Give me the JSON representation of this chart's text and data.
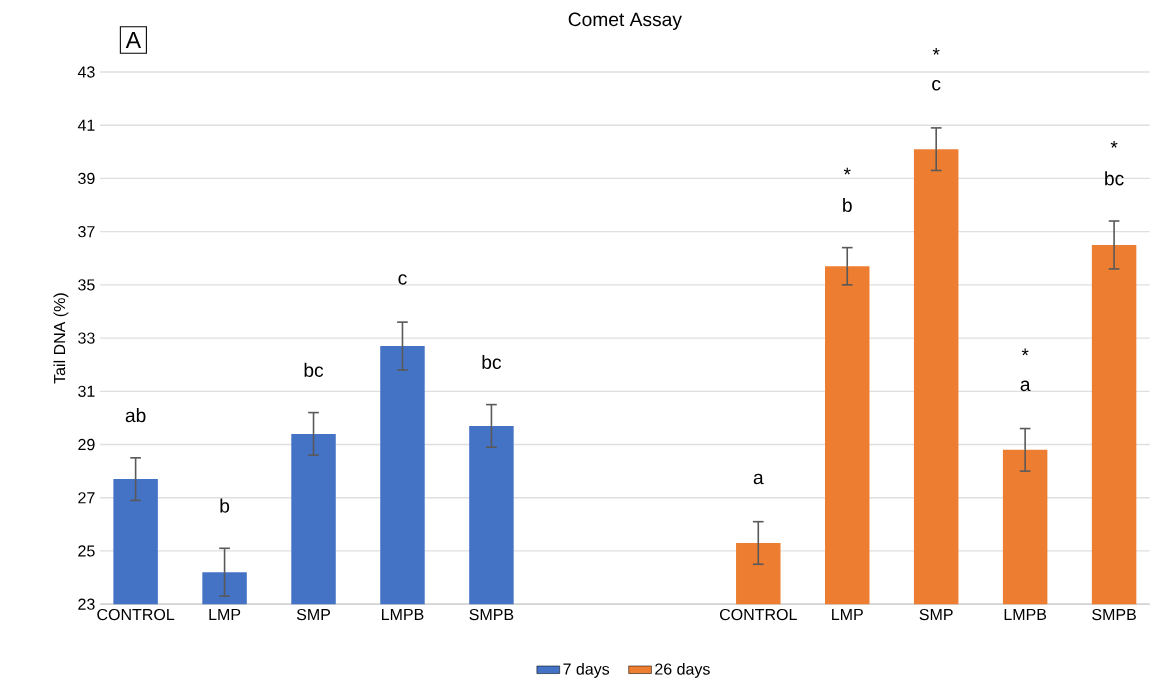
{
  "chart_data": {
    "type": "bar",
    "title": "Comet Assay",
    "ylabel": "Tail DNA (%)",
    "categories": [
      "CONTROL",
      "LMP",
      "SMP",
      "LMPB",
      "SMPB",
      null,
      null,
      "CONTROL",
      "LMP",
      "SMP",
      "LMPB",
      "SMPB"
    ],
    "series": [
      {
        "name": "7 days",
        "color": "#4472c4",
        "values": [
          27.7,
          24.2,
          29.4,
          32.7,
          29.7,
          null,
          null,
          null,
          null,
          null,
          null,
          null
        ],
        "errors": [
          0.8,
          0.9,
          0.8,
          0.9,
          0.8,
          null,
          null,
          null,
          null,
          null,
          null,
          null
        ],
        "value_labels": [
          "ab",
          "b",
          "bc",
          "c",
          "bc",
          null,
          null,
          null,
          null,
          null,
          null,
          null
        ]
      },
      {
        "name": "26 days",
        "color": "#ed7d31",
        "values": [
          null,
          null,
          null,
          null,
          null,
          null,
          null,
          25.3,
          35.7,
          40.1,
          28.8,
          36.5
        ],
        "errors": [
          null,
          null,
          null,
          null,
          null,
          null,
          null,
          0.8,
          0.7,
          0.8,
          0.8,
          0.9
        ],
        "value_labels": [
          null,
          null,
          null,
          null,
          null,
          null,
          null,
          "a",
          "b",
          "c",
          "a",
          "bc"
        ]
      }
    ],
    "ylim": [
      23,
      43
    ],
    "yticks": [
      23,
      25,
      27,
      29,
      31,
      33,
      35,
      37,
      39,
      41,
      43
    ],
    "grid": "y",
    "legend": "bottom",
    "annotations": [
      "A",
      "*",
      "*",
      "*",
      "*"
    ]
  }
}
